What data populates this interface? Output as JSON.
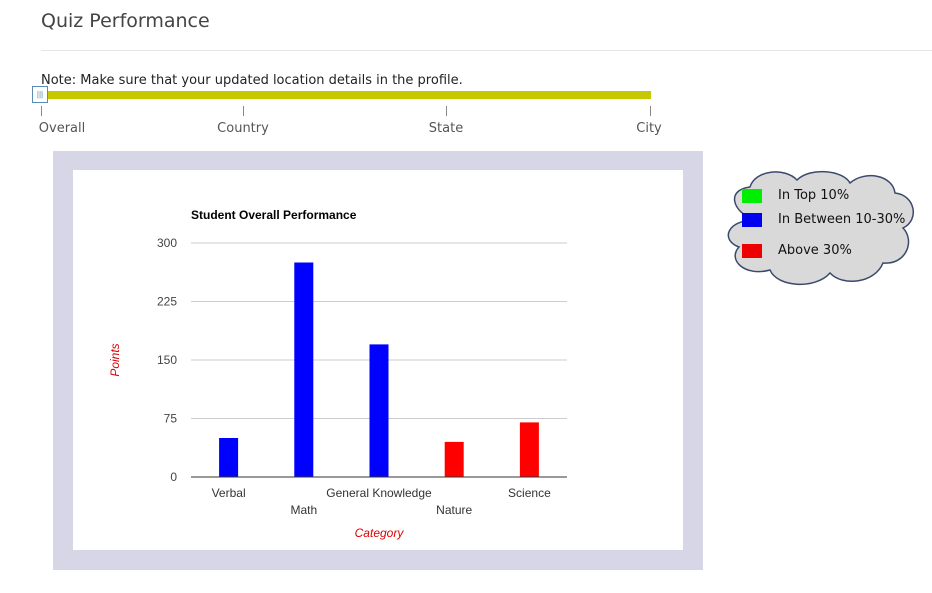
{
  "header": {
    "title": "Quiz Performance"
  },
  "note": "Note: Make sure that your updated location details in the profile.",
  "slider": {
    "track_color": "#c8c800",
    "handle_glyph": "|||",
    "stops": [
      "Overall",
      "Country",
      "State",
      "City"
    ]
  },
  "chart_data": {
    "type": "bar",
    "title": "Student Overall Performance",
    "xlabel": "Category",
    "ylabel": "Points",
    "ylim": [
      0,
      300
    ],
    "yticks": [
      0,
      75,
      150,
      225,
      300
    ],
    "categories": [
      "Verbal",
      "Math",
      "General Knowledge",
      "Nature",
      "Science"
    ],
    "values": [
      50,
      275,
      170,
      45,
      70
    ],
    "bar_colors": [
      "#0000ff",
      "#0000ff",
      "#0000ff",
      "#ff0000",
      "#ff0000"
    ],
    "grid": true
  },
  "legend": {
    "items": [
      {
        "label": "In Top 10%",
        "color": "#00ee00"
      },
      {
        "label": "In Between 10-30%",
        "color": "#0000ee"
      },
      {
        "label": "Above 30%",
        "color": "#ee0000"
      }
    ]
  }
}
